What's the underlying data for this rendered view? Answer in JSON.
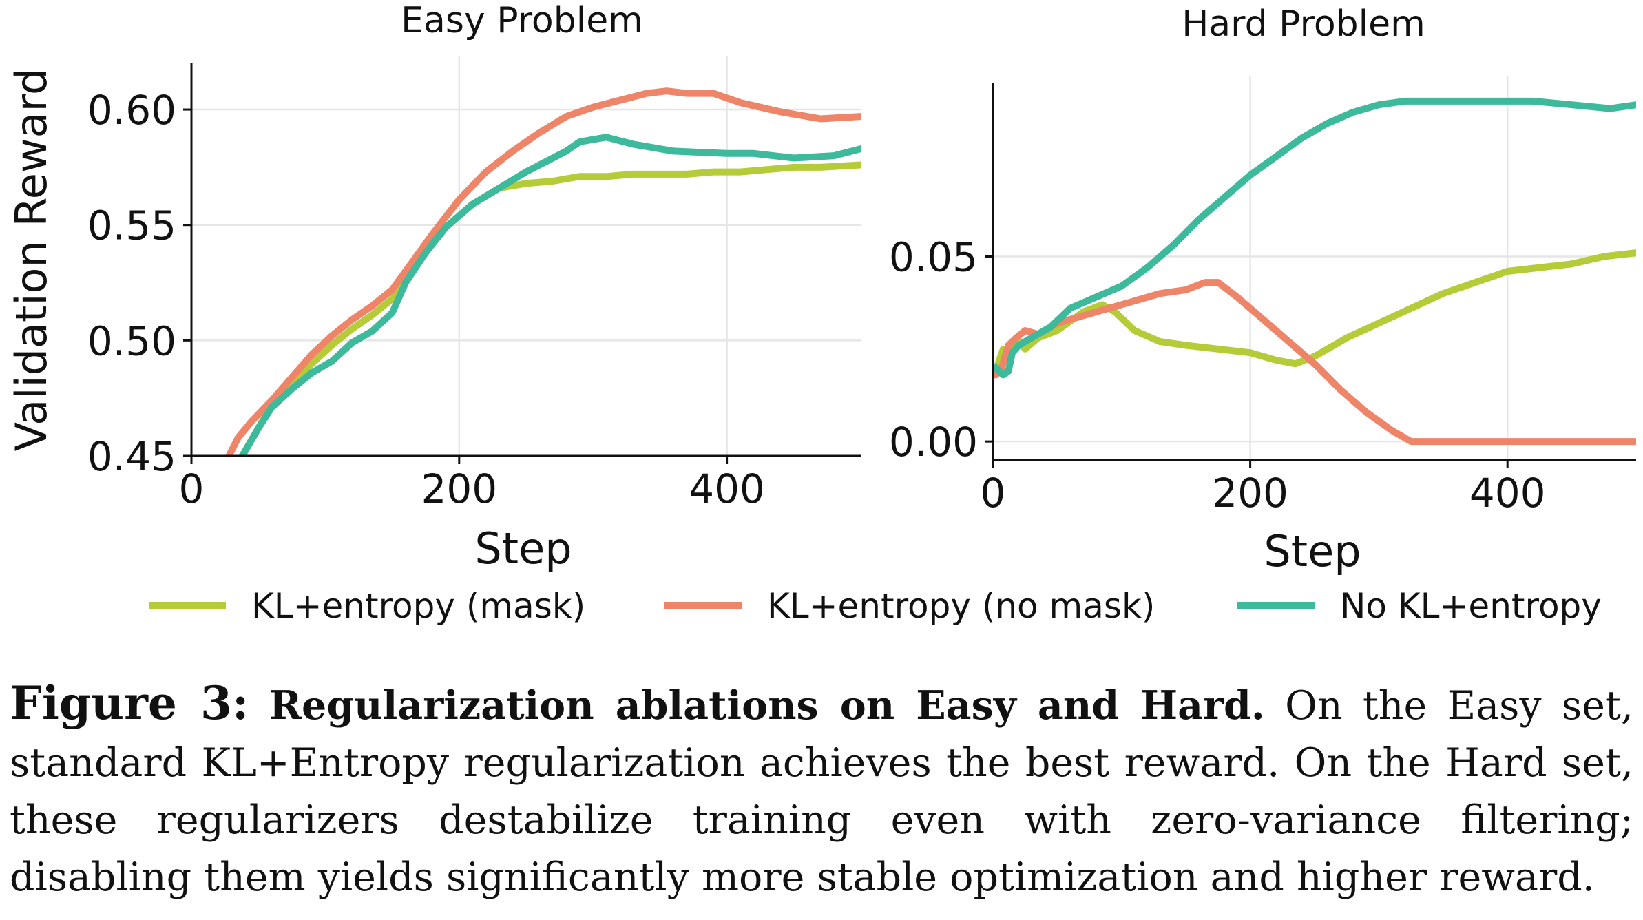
{
  "colors": {
    "mask": "#b5cc38",
    "no_mask": "#ee8468",
    "no_kl": "#3dba9b"
  },
  "chart_data": [
    {
      "type": "line",
      "title": "Easy Problem",
      "xlabel": "Step",
      "ylabel": "Validation Reward",
      "xlim": [
        0,
        500
      ],
      "ylim": [
        0.45,
        0.62
      ],
      "xticks": [
        0,
        200,
        400
      ],
      "xtick_labels": [
        "0",
        "200",
        "400"
      ],
      "yticks": [
        0.45,
        0.5,
        0.55,
        0.6
      ],
      "ytick_labels": [
        "0.45",
        "0.50",
        "0.55",
        "0.60"
      ],
      "grid": true,
      "series": [
        {
          "name": "KL+entropy (mask)",
          "color": "#b5cc38",
          "x": [
            38,
            50,
            60,
            75,
            90,
            105,
            120,
            135,
            150,
            160,
            175,
            190,
            210,
            230,
            250,
            270,
            290,
            310,
            330,
            350,
            370,
            390,
            410,
            430,
            450,
            470,
            500
          ],
          "y": [
            0.45,
            0.462,
            0.472,
            0.481,
            0.49,
            0.498,
            0.505,
            0.511,
            0.518,
            0.526,
            0.538,
            0.549,
            0.559,
            0.566,
            0.568,
            0.569,
            0.571,
            0.571,
            0.572,
            0.572,
            0.572,
            0.573,
            0.573,
            0.574,
            0.575,
            0.575,
            0.576
          ]
        },
        {
          "name": "KL+entropy (no mask)",
          "color": "#ee8468",
          "x": [
            28,
            35,
            45,
            60,
            75,
            90,
            105,
            120,
            135,
            150,
            165,
            180,
            200,
            220,
            240,
            260,
            280,
            300,
            320,
            340,
            355,
            370,
            390,
            410,
            440,
            470,
            500
          ],
          "y": [
            0.45,
            0.458,
            0.465,
            0.474,
            0.484,
            0.494,
            0.502,
            0.509,
            0.515,
            0.522,
            0.534,
            0.546,
            0.561,
            0.573,
            0.582,
            0.59,
            0.597,
            0.601,
            0.604,
            0.607,
            0.608,
            0.607,
            0.607,
            0.603,
            0.599,
            0.596,
            0.597
          ]
        },
        {
          "name": "No KL+entropy",
          "color": "#3dba9b",
          "x": [
            38,
            50,
            60,
            75,
            90,
            105,
            120,
            135,
            150,
            160,
            175,
            190,
            210,
            230,
            250,
            270,
            280,
            290,
            300,
            310,
            330,
            360,
            400,
            420,
            450,
            480,
            500
          ],
          "y": [
            0.45,
            0.462,
            0.471,
            0.479,
            0.486,
            0.491,
            0.499,
            0.504,
            0.512,
            0.525,
            0.538,
            0.549,
            0.559,
            0.566,
            0.573,
            0.579,
            0.582,
            0.586,
            0.587,
            0.588,
            0.585,
            0.582,
            0.581,
            0.581,
            0.579,
            0.58,
            0.583
          ]
        }
      ]
    },
    {
      "type": "line",
      "title": "Hard Problem",
      "xlabel": "Step",
      "ylabel": "",
      "xlim": [
        0,
        500
      ],
      "ylim": [
        -0.005,
        0.097
      ],
      "xticks": [
        0,
        200,
        400
      ],
      "xtick_labels": [
        "0",
        "200",
        "400"
      ],
      "yticks": [
        0.0,
        0.05
      ],
      "ytick_labels": [
        "0.00",
        "0.05"
      ],
      "grid": true,
      "series": [
        {
          "name": "KL+entropy (mask)",
          "color": "#b5cc38",
          "x": [
            2,
            8,
            12,
            18,
            25,
            35,
            50,
            70,
            85,
            95,
            110,
            130,
            150,
            175,
            200,
            220,
            235,
            250,
            275,
            300,
            325,
            350,
            375,
            400,
            425,
            450,
            475,
            500
          ],
          "y": [
            0.019,
            0.025,
            0.024,
            0.028,
            0.025,
            0.028,
            0.03,
            0.035,
            0.037,
            0.035,
            0.03,
            0.027,
            0.026,
            0.025,
            0.024,
            0.022,
            0.021,
            0.023,
            0.028,
            0.032,
            0.036,
            0.04,
            0.043,
            0.046,
            0.047,
            0.048,
            0.05,
            0.051
          ]
        },
        {
          "name": "KL+entropy (no mask)",
          "color": "#ee8468",
          "x": [
            2,
            6,
            12,
            18,
            25,
            35,
            50,
            70,
            90,
            110,
            130,
            150,
            165,
            175,
            190,
            210,
            230,
            250,
            270,
            290,
            310,
            325,
            340,
            400,
            450,
            500
          ],
          "y": [
            0.018,
            0.019,
            0.026,
            0.028,
            0.03,
            0.029,
            0.032,
            0.034,
            0.036,
            0.038,
            0.04,
            0.041,
            0.043,
            0.043,
            0.039,
            0.033,
            0.027,
            0.021,
            0.014,
            0.008,
            0.003,
            0.0,
            0.0,
            0.0,
            0.0,
            0.0
          ]
        },
        {
          "name": "No KL+entropy",
          "color": "#3dba9b",
          "x": [
            2,
            8,
            12,
            15,
            20,
            30,
            45,
            60,
            80,
            100,
            120,
            140,
            160,
            180,
            200,
            220,
            240,
            260,
            280,
            300,
            320,
            340,
            360,
            380,
            400,
            420,
            450,
            480,
            500
          ],
          "y": [
            0.02,
            0.018,
            0.019,
            0.024,
            0.026,
            0.028,
            0.031,
            0.036,
            0.039,
            0.042,
            0.047,
            0.053,
            0.06,
            0.066,
            0.072,
            0.077,
            0.082,
            0.086,
            0.089,
            0.091,
            0.092,
            0.092,
            0.092,
            0.092,
            0.092,
            0.092,
            0.091,
            0.09,
            0.091
          ]
        }
      ]
    }
  ],
  "legend": {
    "items": [
      {
        "label": "KL+entropy (mask)",
        "color": "#b5cc38"
      },
      {
        "label": "KL+entropy (no mask)",
        "color": "#ee8468"
      },
      {
        "label": "No KL+entropy",
        "color": "#3dba9b"
      }
    ]
  },
  "caption": {
    "figure_label": "Figure 3:",
    "bold_title": "Regularization ablations on Easy and Hard.",
    "text": "On the Easy set, standard KL+Entropy regularization achieves the best reward.  On the Hard set, these regularizers destabilize training even with zero-variance filtering; disabling them yields significantly more stable optimization and higher reward."
  }
}
